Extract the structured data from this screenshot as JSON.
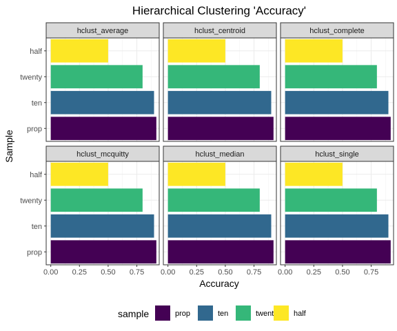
{
  "chart_data": {
    "type": "bar",
    "orientation": "horizontal",
    "title": "Hierarchical Clustering 'Accuracy'",
    "xlabel": "Accuracy",
    "ylabel": "Sample",
    "xlim": [
      -0.04,
      0.945
    ],
    "x_ticks": [
      "0.00",
      "0.25",
      "0.50",
      "0.75"
    ],
    "x_tick_values": [
      0,
      0.25,
      0.5,
      0.75
    ],
    "categories": [
      "prop",
      "ten",
      "twenty",
      "half"
    ],
    "grid": true,
    "legend": {
      "title": "sample",
      "placement": "bottom",
      "entries": [
        "prop",
        "ten",
        "twenty",
        "half"
      ]
    },
    "colors": {
      "prop": "#440154",
      "ten": "#31688e",
      "twenty": "#35b779",
      "half": "#fde725"
    },
    "facets": [
      {
        "name": "hclust_average",
        "values": {
          "prop": 0.92,
          "ten": 0.9,
          "twenty": 0.8,
          "half": 0.5
        }
      },
      {
        "name": "hclust_centroid",
        "values": {
          "prop": 0.92,
          "ten": 0.9,
          "twenty": 0.8,
          "half": 0.5
        }
      },
      {
        "name": "hclust_complete",
        "values": {
          "prop": 0.92,
          "ten": 0.9,
          "twenty": 0.8,
          "half": 0.5
        }
      },
      {
        "name": "hclust_mcquitty",
        "values": {
          "prop": 0.92,
          "ten": 0.9,
          "twenty": 0.8,
          "half": 0.5
        }
      },
      {
        "name": "hclust_median",
        "values": {
          "prop": 0.92,
          "ten": 0.9,
          "twenty": 0.8,
          "half": 0.5
        }
      },
      {
        "name": "hclust_single",
        "values": {
          "prop": 0.92,
          "ten": 0.9,
          "twenty": 0.8,
          "half": 0.5
        }
      }
    ]
  }
}
